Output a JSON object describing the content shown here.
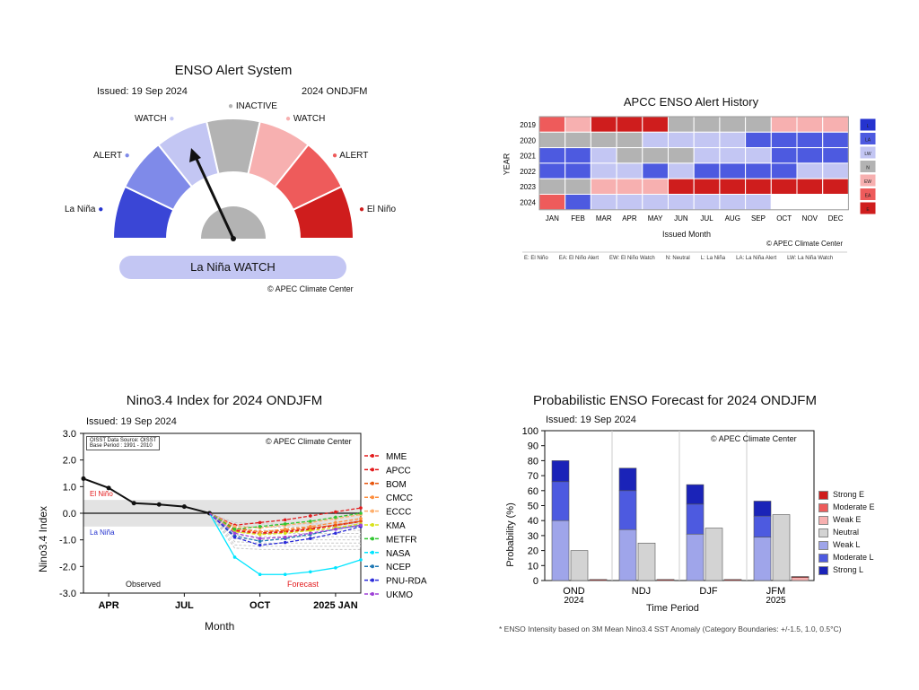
{
  "alert": {
    "title": "ENSO Alert System",
    "issued": "Issued: 19 Sep 2024",
    "season": "2024 ONDJFM",
    "labels": [
      "La Niña",
      "ALERT",
      "WATCH",
      "INACTIVE",
      "WATCH",
      "ALERT",
      "El Niño"
    ],
    "status": "La Niña WATCH",
    "credit": "© APEC Climate Center",
    "colors": [
      "#3a46d6",
      "#7f8ae9",
      "#c3c6f3",
      "#b3b3b3",
      "#f7b0b0",
      "#ee5b5b",
      "#cf1d1d"
    ]
  },
  "history": {
    "title": "APCC ENSO Alert History",
    "ylabel": "YEAR",
    "xlabel": "Issued Month",
    "credit": "© APEC Climate Center",
    "years": [
      "2019",
      "2020",
      "2021",
      "2022",
      "2023",
      "2024"
    ],
    "months": [
      "JAN",
      "FEB",
      "MAR",
      "APR",
      "MAY",
      "JUN",
      "JUL",
      "AUG",
      "SEP",
      "OCT",
      "NOV",
      "DEC"
    ],
    "grid": [
      [
        "EA",
        "EW",
        "E",
        "E",
        "E",
        "N",
        "N",
        "N",
        "N",
        "EW",
        "EW",
        "EW"
      ],
      [
        "N",
        "N",
        "N",
        "N",
        "LW",
        "LW",
        "LW",
        "LW",
        "LA",
        "LA",
        "LA",
        "LA"
      ],
      [
        "LA",
        "LA",
        "LW",
        "N",
        "N",
        "N",
        "LW",
        "LW",
        "LW",
        "LA",
        "LA",
        "LA"
      ],
      [
        "LA",
        "LA",
        "LW",
        "LW",
        "LA",
        "LW",
        "LA",
        "LA",
        "LA",
        "LA",
        "LW",
        "LW"
      ],
      [
        "N",
        "N",
        "EW",
        "EW",
        "EW",
        "E",
        "E",
        "E",
        "E",
        "E",
        "E",
        "E"
      ],
      [
        "EA",
        "LA",
        "LW",
        "LW",
        "LW",
        "LW",
        "LW",
        "LW",
        "LW",
        "",
        "",
        ""
      ]
    ],
    "legend_codes": [
      "L",
      "LA",
      "LW",
      "N",
      "EW",
      "EA",
      "E"
    ],
    "code_colors": {
      "L": "#2533cf",
      "LA": "#4d5ae0",
      "LW": "#c3c6f3",
      "N": "#b3b3b3",
      "EW": "#f7b0b0",
      "EA": "#ee5b5b",
      "E": "#cf1d1d",
      "": "#ffffff"
    },
    "footnote": [
      "E: El Niño",
      "EA: El Niño Alert",
      "EW: El Niño Watch",
      "N: Neutral",
      "L: La Niña",
      "LA: La Niña Alert",
      "LW: La Niña Watch"
    ]
  },
  "nino": {
    "title": "Nino3.4 Index for 2024 ONDJFM",
    "issued": "Issued: 19 Sep 2024",
    "source": "OISST Data Source: OISST",
    "base": "Base Period : 1991 - 2010",
    "credit": "© APEC Climate Center",
    "el_nino": "El Niño",
    "la_nina": "La Niña",
    "observed": "Observed",
    "forecast": "Forecast"
  },
  "prob": {
    "title": "Probabilistic ENSO Forecast for 2024 ONDJFM",
    "issued": "Issued: 19 Sep 2024",
    "credit": "© APEC Climate Center",
    "footnote": "* ENSO Intensity based on 3M Mean Nino3.4 SST Anomaly (Category Boundaries: +/-1.5, 1.0, 0.5°C)"
  },
  "chart_data": [
    {
      "type": "line",
      "title": "Nino3.4 Index for 2024 ONDJFM",
      "xlabel": "Month",
      "ylabel": "Nino3.4 Index",
      "ylim": [
        -3.0,
        3.0
      ],
      "yticks": [
        "3.0",
        "2.0",
        "1.0",
        "0.0",
        "-1.0",
        "-2.0",
        "-3.0"
      ],
      "xticks": [
        "APR",
        "JUL",
        "OCT",
        "2025 JAN"
      ],
      "observed": {
        "x": [
          0,
          1,
          2,
          3,
          4,
          5
        ],
        "y": [
          1.3,
          0.95,
          0.38,
          0.33,
          0.25,
          0.0
        ]
      },
      "forecast_x": [
        5,
        6,
        7,
        8,
        9,
        10,
        11
      ],
      "models": [
        {
          "name": "MME",
          "color": "#e31a1c",
          "values": [
            0.0,
            -0.65,
            -0.75,
            -0.7,
            -0.6,
            -0.45,
            -0.3
          ]
        },
        {
          "name": "APCC",
          "color": "#e31a1c",
          "values": [
            0.0,
            -0.45,
            -0.35,
            -0.25,
            -0.1,
            0.05,
            0.2
          ]
        },
        {
          "name": "BOM",
          "color": "#e6550d",
          "values": [
            0.0,
            -0.55,
            -0.7,
            -0.65,
            -0.55,
            -0.45,
            -0.3
          ]
        },
        {
          "name": "CMCC",
          "color": "#fd8d3c",
          "values": [
            0.0,
            -0.6,
            -0.7,
            -0.6,
            -0.5,
            -0.35,
            -0.2
          ]
        },
        {
          "name": "ECCC",
          "color": "#fdae6b",
          "values": [
            0.0,
            -0.5,
            -0.55,
            -0.45,
            -0.35,
            -0.2,
            -0.05
          ]
        },
        {
          "name": "KMA",
          "color": "#d8e21a",
          "values": [
            0.0,
            -0.7,
            -0.8,
            -0.75,
            -0.65,
            -0.55,
            -0.4
          ]
        },
        {
          "name": "METFR",
          "color": "#31c631",
          "values": [
            0.0,
            -0.6,
            -0.5,
            -0.4,
            -0.3,
            -0.15,
            0.0
          ]
        },
        {
          "name": "NASA",
          "color": "#00e5ff",
          "values": [
            0.0,
            -1.65,
            -2.3,
            -2.3,
            -2.2,
            -2.05,
            -1.75
          ]
        },
        {
          "name": "NCEP",
          "color": "#1f78b4",
          "values": [
            0.0,
            -0.85,
            -1.05,
            -0.95,
            -0.8,
            -0.6,
            -0.45
          ]
        },
        {
          "name": "PNU-RDA",
          "color": "#2b2bd9",
          "values": [
            0.0,
            -0.9,
            -1.2,
            -1.1,
            -0.95,
            -0.75,
            -0.5
          ]
        },
        {
          "name": "UKMO",
          "color": "#9e3fd6",
          "values": [
            0.0,
            -0.75,
            -0.95,
            -0.9,
            -0.75,
            -0.6,
            -0.45
          ]
        }
      ]
    },
    {
      "type": "bar",
      "title": "Probabilistic ENSO Forecast for 2024 ONDJFM",
      "xlabel": "Time Period",
      "ylabel": "Probability (%)",
      "ylim": [
        0,
        100
      ],
      "categories": [
        "OND 2024",
        "NDJ",
        "DJF",
        "JFM 2025"
      ],
      "la_nina": {
        "weak_l": [
          40,
          34,
          31,
          29
        ],
        "moderate_l": [
          26,
          26,
          20,
          14
        ],
        "strong_l": [
          14,
          15,
          13,
          10
        ]
      },
      "neutral": [
        20,
        25,
        35,
        44
      ],
      "el_nino": {
        "weak_e": [
          0,
          0,
          0,
          2
        ],
        "moderate_e": [
          0,
          0,
          0,
          0
        ],
        "strong_e": [
          0,
          0,
          0,
          0
        ]
      },
      "legend": [
        "Strong E",
        "Moderate E",
        "Weak E",
        "Neutral",
        "Weak L",
        "Moderate L",
        "Strong L"
      ],
      "legend_colors": [
        "#cf1d1d",
        "#ee5b5b",
        "#f7b0b0",
        "#d3d3d3",
        "#9fa5ea",
        "#4d5ae0",
        "#1a23b8"
      ]
    }
  ]
}
